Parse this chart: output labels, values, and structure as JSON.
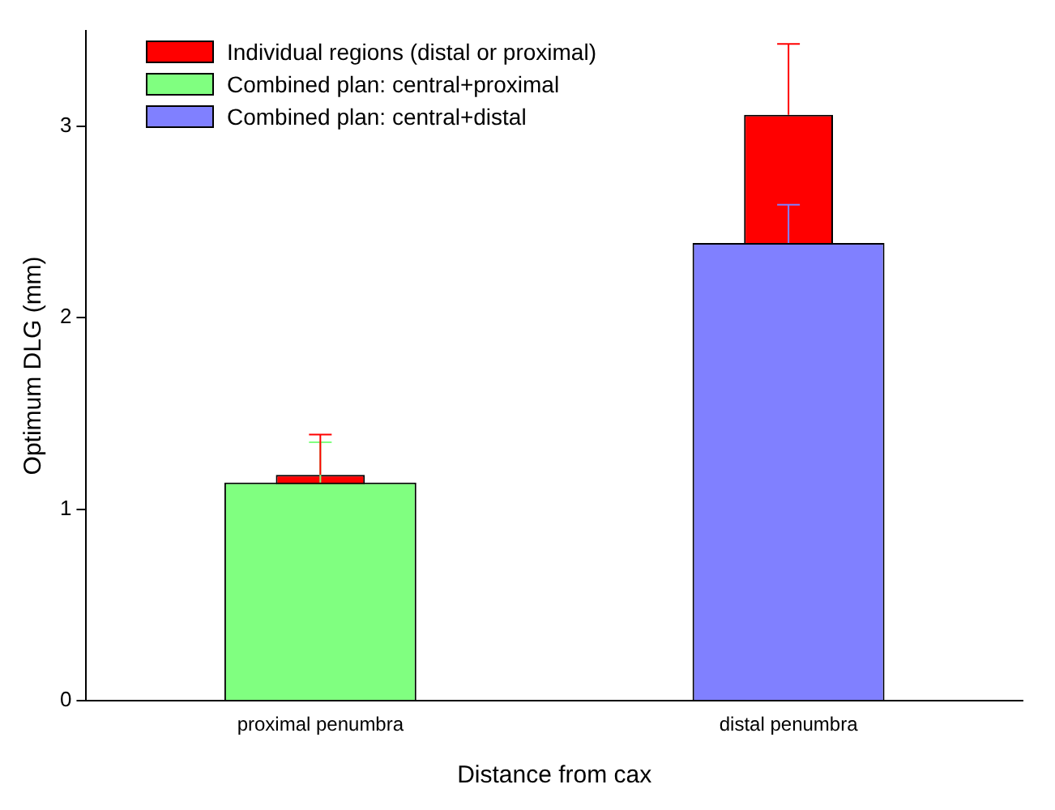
{
  "chart_data": {
    "type": "bar",
    "xlabel": "Distance from cax",
    "ylabel": "Optimum DLG (mm)",
    "categories": [
      "proximal penumbra",
      "distal penumbra"
    ],
    "series": [
      {
        "name": "Combined plan: central+proximal",
        "color": "#80ff80",
        "values": [
          1.14,
          null
        ],
        "errors": [
          [
            1.14,
            1.35
          ],
          null
        ]
      },
      {
        "name": "Combined plan: central+distal",
        "color": "#8080ff",
        "values": [
          null,
          2.39
        ],
        "errors": [
          null,
          [
            2.39,
            2.59
          ]
        ]
      },
      {
        "name": "Individual regions (distal or proximal)",
        "color": "#ff0000",
        "values": [
          1.18,
          3.06
        ],
        "errors": [
          [
            1.18,
            1.39
          ],
          [
            3.06,
            3.43
          ]
        ]
      }
    ],
    "ylim": [
      0,
      3.5
    ],
    "yticks": [
      0,
      1,
      2,
      3
    ],
    "grid": false,
    "legend": "top left"
  }
}
